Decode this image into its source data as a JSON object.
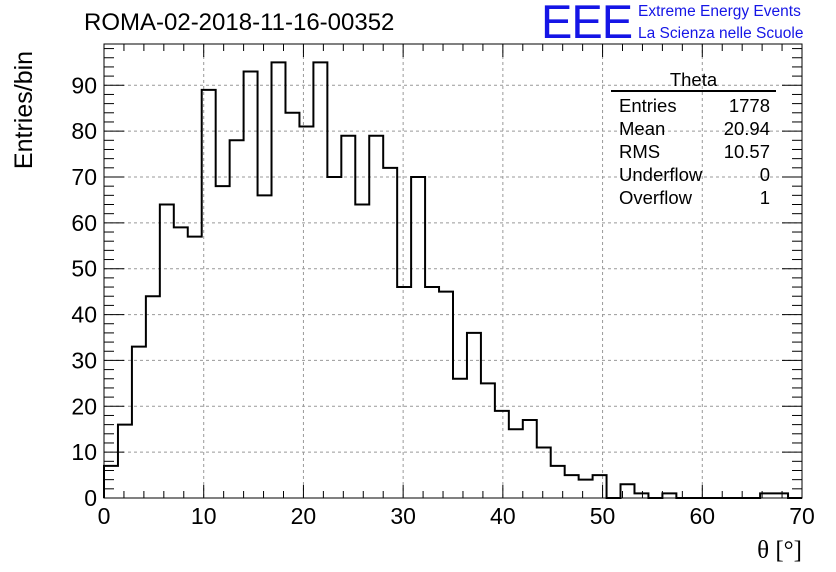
{
  "header": {
    "run_title": "ROMA-02-2018-11-16-00352",
    "logo_text": "EEE",
    "logo_line1": "Extreme Energy Events",
    "logo_line2": "La Scienza nelle Scuole"
  },
  "stats_box": {
    "title": "Theta",
    "rows": [
      {
        "label": "Entries",
        "value": "1778"
      },
      {
        "label": "Mean",
        "value": "20.94"
      },
      {
        "label": "RMS",
        "value": "10.57"
      },
      {
        "label": "Underflow",
        "value": "0"
      },
      {
        "label": "Overflow",
        "value": "1"
      }
    ]
  },
  "chart_data": {
    "type": "histogram",
    "xlabel": "θ [°]",
    "ylabel": "Entries/bin",
    "xlim": [
      0,
      70
    ],
    "ylim": [
      0,
      99
    ],
    "xticks": [
      0,
      10,
      20,
      30,
      40,
      50,
      60,
      70
    ],
    "yticks": [
      0,
      10,
      20,
      30,
      40,
      50,
      60,
      70,
      80,
      90
    ],
    "grid": true,
    "bin_width": 1.4,
    "bin_start": 0,
    "values": [
      7,
      16,
      33,
      44,
      64,
      59,
      57,
      89,
      68,
      78,
      93,
      66,
      95,
      84,
      81,
      95,
      70,
      79,
      64,
      79,
      72,
      46,
      70,
      46,
      45,
      26,
      36,
      25,
      19,
      15,
      17,
      11,
      7,
      5,
      4,
      5,
      0,
      3,
      1,
      0,
      1,
      0,
      0,
      0,
      0,
      0,
      0,
      1,
      1,
      0
    ],
    "line_color": "#000000",
    "grid_color": "#999999"
  }
}
